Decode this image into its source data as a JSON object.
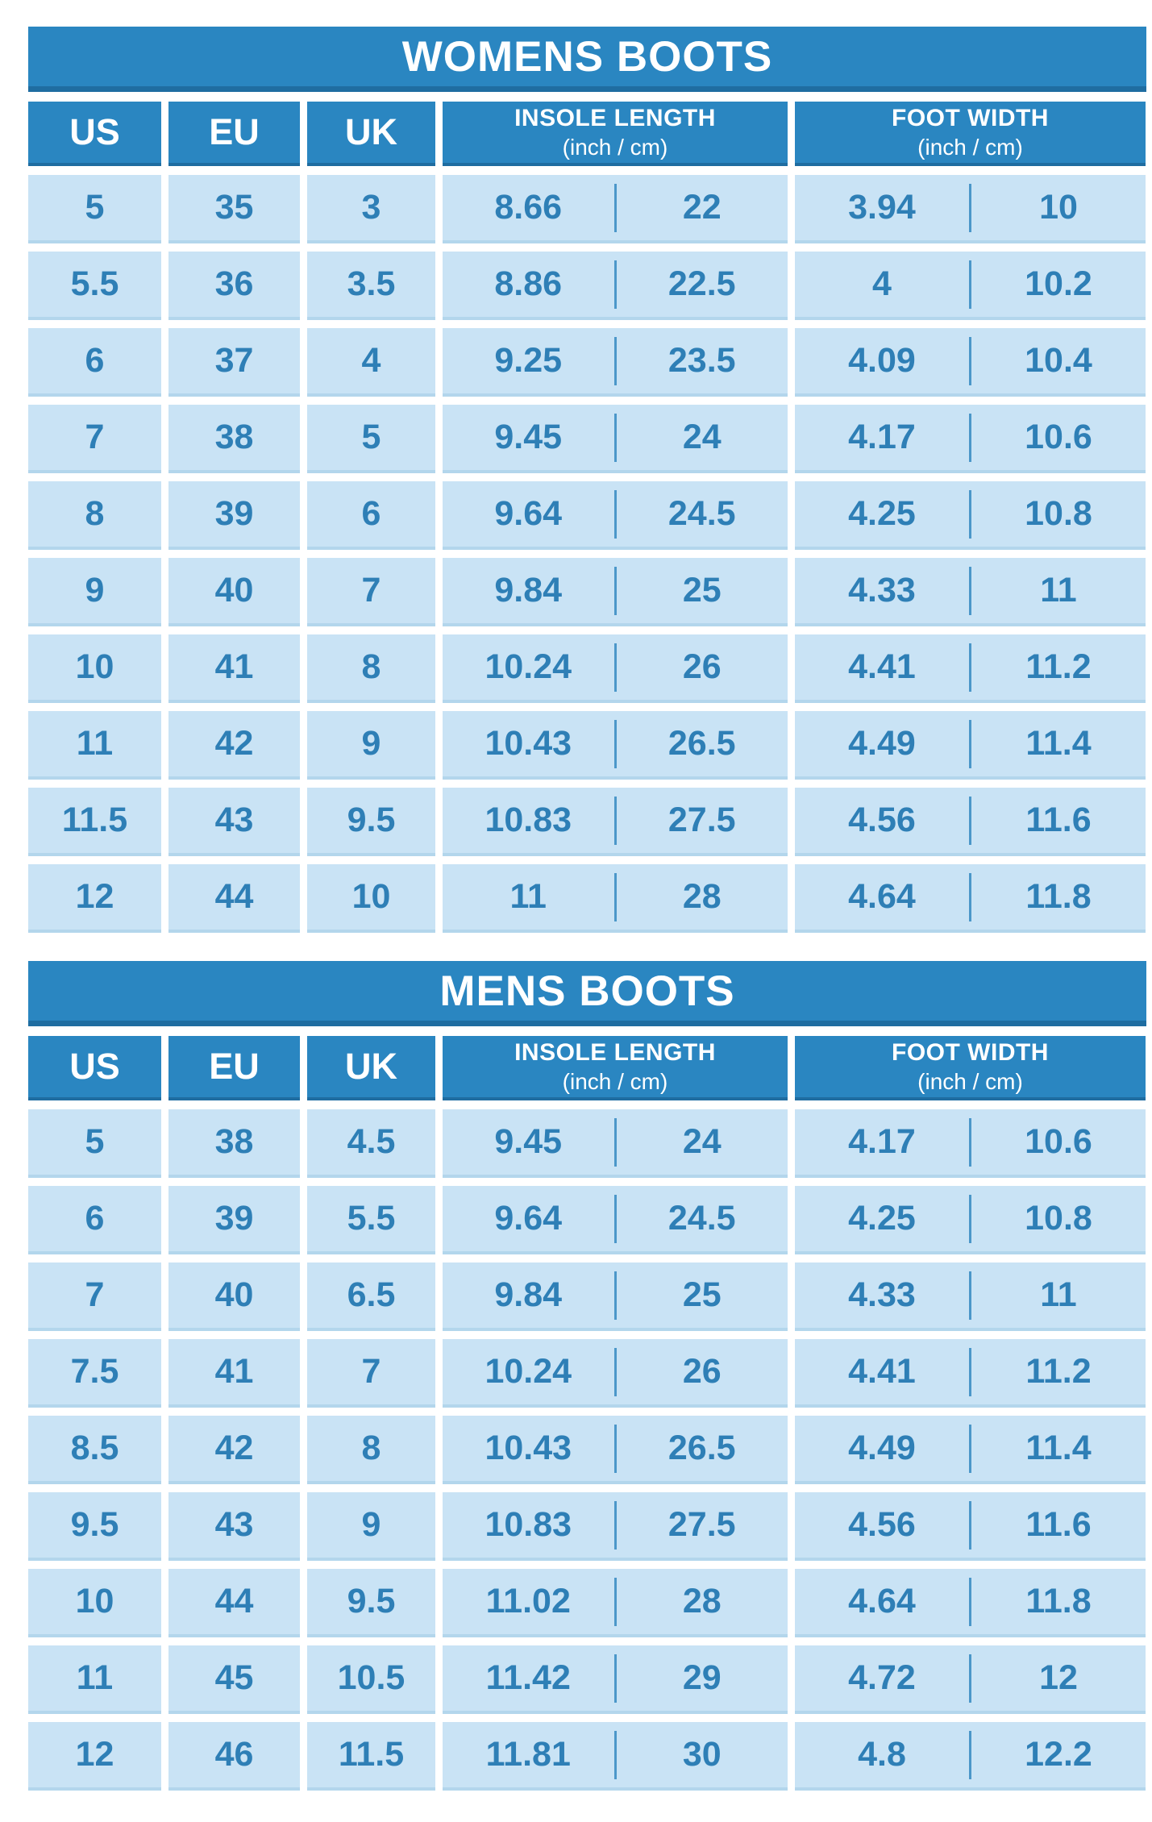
{
  "colors": {
    "header_blue": "#2a86c1",
    "header_border_blue": "#1f6da1",
    "cell_blue": "#c9e3f5",
    "cell_border_blue": "#b3d6ec",
    "value_text_blue": "#2e7fb6",
    "divider_blue": "#4b97c9",
    "background": "#ffffff",
    "header_text": "#ffffff"
  },
  "tables": [
    {
      "title": "WOMENS BOOTS",
      "headers": {
        "us": "US",
        "eu": "EU",
        "uk": "UK",
        "insole": {
          "label": "INSOLE LENGTH",
          "sublabel": "(inch / cm)"
        },
        "foot": {
          "label": "FOOT WIDTH",
          "sublabel": "(inch / cm)"
        }
      },
      "rows": [
        [
          "5",
          "35",
          "3",
          "8.66",
          "22",
          "3.94",
          "10"
        ],
        [
          "5.5",
          "36",
          "3.5",
          "8.86",
          "22.5",
          "4",
          "10.2"
        ],
        [
          "6",
          "37",
          "4",
          "9.25",
          "23.5",
          "4.09",
          "10.4"
        ],
        [
          "7",
          "38",
          "5",
          "9.45",
          "24",
          "4.17",
          "10.6"
        ],
        [
          "8",
          "39",
          "6",
          "9.64",
          "24.5",
          "4.25",
          "10.8"
        ],
        [
          "9",
          "40",
          "7",
          "9.84",
          "25",
          "4.33",
          "11"
        ],
        [
          "10",
          "41",
          "8",
          "10.24",
          "26",
          "4.41",
          "11.2"
        ],
        [
          "11",
          "42",
          "9",
          "10.43",
          "26.5",
          "4.49",
          "11.4"
        ],
        [
          "11.5",
          "43",
          "9.5",
          "10.83",
          "27.5",
          "4.56",
          "11.6"
        ],
        [
          "12",
          "44",
          "10",
          "11",
          "28",
          "4.64",
          "11.8"
        ]
      ]
    },
    {
      "title": "MENS BOOTS",
      "headers": {
        "us": "US",
        "eu": "EU",
        "uk": "UK",
        "insole": {
          "label": "INSOLE LENGTH",
          "sublabel": "(inch / cm)"
        },
        "foot": {
          "label": "FOOT WIDTH",
          "sublabel": "(inch / cm)"
        }
      },
      "rows": [
        [
          "5",
          "38",
          "4.5",
          "9.45",
          "24",
          "4.17",
          "10.6"
        ],
        [
          "6",
          "39",
          "5.5",
          "9.64",
          "24.5",
          "4.25",
          "10.8"
        ],
        [
          "7",
          "40",
          "6.5",
          "9.84",
          "25",
          "4.33",
          "11"
        ],
        [
          "7.5",
          "41",
          "7",
          "10.24",
          "26",
          "4.41",
          "11.2"
        ],
        [
          "8.5",
          "42",
          "8",
          "10.43",
          "26.5",
          "4.49",
          "11.4"
        ],
        [
          "9.5",
          "43",
          "9",
          "10.83",
          "27.5",
          "4.56",
          "11.6"
        ],
        [
          "10",
          "44",
          "9.5",
          "11.02",
          "28",
          "4.64",
          "11.8"
        ],
        [
          "11",
          "45",
          "10.5",
          "11.42",
          "29",
          "4.72",
          "12"
        ],
        [
          "12",
          "46",
          "11.5",
          "11.81",
          "30",
          "4.8",
          "12.2"
        ]
      ]
    }
  ]
}
